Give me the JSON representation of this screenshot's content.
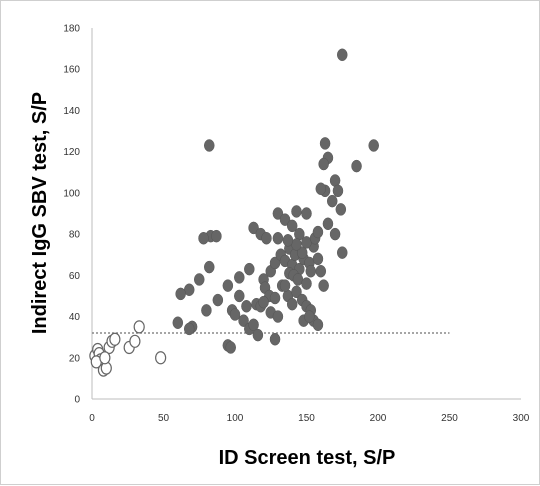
{
  "chart_data": {
    "type": "scatter",
    "xlabel": "ID Screen test, S/P",
    "ylabel": "Indirect IgG SBV test, S/P",
    "xlim": [
      0,
      300
    ],
    "ylim": [
      0,
      180
    ],
    "x_ticks": [
      0,
      50,
      100,
      150,
      200,
      250,
      300
    ],
    "y_ticks": [
      0,
      20,
      40,
      60,
      80,
      100,
      120,
      140,
      160,
      180
    ],
    "x_tick_labels": [
      "0",
      "50",
      "100",
      "150",
      "200",
      "250",
      "300"
    ],
    "y_tick_labels": [
      "0",
      "20",
      "40",
      "60",
      "80",
      "100",
      "120",
      "140",
      "160",
      "180"
    ],
    "grid": false,
    "cutoff_line": {
      "y": 32,
      "x_range": [
        0,
        250
      ],
      "style": "dotted"
    },
    "series": [
      {
        "marker": "filled",
        "color": "#666666",
        "points": [
          [
            82,
            123
          ],
          [
            175,
            167
          ],
          [
            163,
            124
          ],
          [
            197,
            123
          ],
          [
            165,
            117
          ],
          [
            162,
            114
          ],
          [
            185,
            113
          ],
          [
            170,
            106
          ],
          [
            172,
            101
          ],
          [
            163,
            101
          ],
          [
            160,
            102
          ],
          [
            168,
            96
          ],
          [
            174,
            92
          ],
          [
            83,
            79
          ],
          [
            87,
            79
          ],
          [
            78,
            78
          ],
          [
            113,
            83
          ],
          [
            118,
            80
          ],
          [
            122,
            78
          ],
          [
            130,
            90
          ],
          [
            135,
            87
          ],
          [
            140,
            84
          ],
          [
            143,
            91
          ],
          [
            150,
            90
          ],
          [
            165,
            85
          ],
          [
            170,
            80
          ],
          [
            145,
            80
          ],
          [
            130,
            78
          ],
          [
            82,
            64
          ],
          [
            75,
            58
          ],
          [
            68,
            53
          ],
          [
            62,
            51
          ],
          [
            95,
            55
          ],
          [
            103,
            59
          ],
          [
            110,
            63
          ],
          [
            120,
            58
          ],
          [
            125,
            62
          ],
          [
            128,
            66
          ],
          [
            132,
            70
          ],
          [
            135,
            67
          ],
          [
            138,
            73
          ],
          [
            140,
            65
          ],
          [
            142,
            70
          ],
          [
            145,
            63
          ],
          [
            148,
            68
          ],
          [
            152,
            66
          ],
          [
            155,
            74
          ],
          [
            158,
            68
          ],
          [
            162,
            55
          ],
          [
            175,
            71
          ],
          [
            115,
            46
          ],
          [
            118,
            45
          ],
          [
            121,
            54
          ],
          [
            124,
            50
          ],
          [
            128,
            49
          ],
          [
            133,
            55
          ],
          [
            137,
            50
          ],
          [
            140,
            46
          ],
          [
            143,
            52
          ],
          [
            147,
            48
          ],
          [
            150,
            45
          ],
          [
            153,
            43
          ],
          [
            155,
            38
          ],
          [
            158,
            36
          ],
          [
            148,
            38
          ],
          [
            152,
            40
          ],
          [
            60,
            37
          ],
          [
            70,
            35
          ],
          [
            68,
            34
          ],
          [
            80,
            43
          ],
          [
            88,
            48
          ],
          [
            98,
            43
          ],
          [
            100,
            41
          ],
          [
            103,
            50
          ],
          [
            106,
            38
          ],
          [
            110,
            34
          ],
          [
            113,
            36
          ],
          [
            116,
            31
          ],
          [
            95,
            26
          ],
          [
            97,
            25
          ],
          [
            128,
            29
          ],
          [
            108,
            45
          ],
          [
            120,
            47
          ],
          [
            125,
            42
          ],
          [
            130,
            40
          ],
          [
            135,
            55
          ],
          [
            138,
            61
          ],
          [
            141,
            60
          ],
          [
            144,
            58
          ],
          [
            147,
            71
          ],
          [
            150,
            76
          ],
          [
            153,
            62
          ],
          [
            156,
            78
          ],
          [
            160,
            62
          ],
          [
            143,
            75
          ],
          [
            150,
            56
          ],
          [
            137,
            77
          ],
          [
            158,
            81
          ]
        ]
      },
      {
        "marker": "open",
        "color": "#666666",
        "points": [
          [
            2,
            21
          ],
          [
            4,
            24
          ],
          [
            5,
            22
          ],
          [
            6,
            19
          ],
          [
            7,
            17
          ],
          [
            8,
            14
          ],
          [
            10,
            15
          ],
          [
            12,
            25
          ],
          [
            14,
            28
          ],
          [
            16,
            29
          ],
          [
            26,
            25
          ],
          [
            30,
            28
          ],
          [
            33,
            35
          ],
          [
            48,
            20
          ],
          [
            3,
            18
          ],
          [
            9,
            20
          ]
        ]
      }
    ]
  }
}
